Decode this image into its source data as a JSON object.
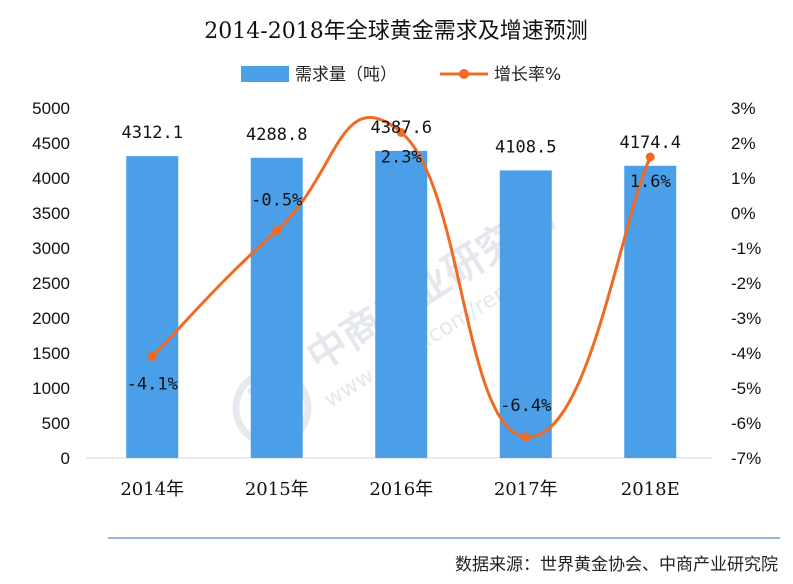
{
  "chart_data": {
    "type": "bar+line",
    "title": "2014-2018年全球黄金需求及增速预测",
    "categories": [
      "2014年",
      "2015年",
      "2016年",
      "2017年",
      "2018E"
    ],
    "series": [
      {
        "name": "需求量（吨）",
        "type": "bar",
        "axis": "left",
        "values": [
          4312.1,
          4288.8,
          4387.6,
          4108.5,
          4174.4
        ],
        "labels": [
          "4312.1",
          "4288.8",
          "4387.6",
          "4108.5",
          "4174.4"
        ],
        "color": "#4a9fe8"
      },
      {
        "name": "增长率%",
        "type": "line",
        "smooth": true,
        "axis": "right",
        "values": [
          -4.1,
          -0.5,
          2.3,
          -6.4,
          1.6
        ],
        "labels": [
          "-4.1%",
          "-0.5%",
          "2.3%",
          "-6.4%",
          "1.6%"
        ],
        "color": "#f06a24"
      }
    ],
    "y_left": {
      "min": 0,
      "max": 5000,
      "step": 500,
      "ticks": [
        "0",
        "500",
        "1000",
        "1500",
        "2000",
        "2500",
        "3000",
        "3500",
        "4000",
        "4500",
        "5000"
      ]
    },
    "y_right": {
      "min": -7,
      "max": 3,
      "step": 1,
      "ticks": [
        "-7%",
        "-6%",
        "-5%",
        "-4%",
        "-3%",
        "-2%",
        "-1%",
        "0%",
        "1%",
        "2%",
        "3%"
      ]
    },
    "legend_position": "top-center",
    "grid": false
  },
  "source_note": "数据来源：世界黄金协会、中商产业研究院",
  "watermark": {
    "brand": "中商产业研究院",
    "url": "www.askci.com/reports/",
    "logo_icon": "askci-logo-icon"
  }
}
